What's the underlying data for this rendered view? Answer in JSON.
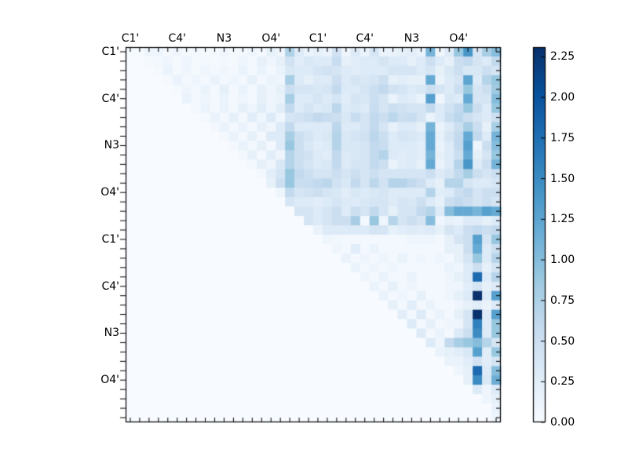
{
  "figure": {
    "background": "#ffffff"
  },
  "chart_data": {
    "type": "heatmap",
    "title": "",
    "xlabel": "",
    "ylabel": "",
    "n_rows": 40,
    "n_cols": 40,
    "x_axis_side": "top",
    "y_axis_side": "left",
    "grid": false,
    "x_tick_labels": [
      "C1'",
      "C4'",
      "N3",
      "O4'",
      "C1'",
      "C4'",
      "N3",
      "O4'"
    ],
    "y_tick_labels": [
      "C1'",
      "C4'",
      "N3",
      "O4'",
      "C1'",
      "C4'",
      "N3",
      "O4'"
    ],
    "x_tick_label_positions": [
      0,
      5,
      10,
      15,
      20,
      25,
      30,
      35
    ],
    "y_tick_label_positions": [
      0,
      5,
      10,
      15,
      20,
      25,
      30,
      35
    ],
    "colormap": "Blues",
    "colormap_stops": [
      "#f7fbff",
      "#deebf7",
      "#c6dbef",
      "#9ecae1",
      "#6baed6",
      "#4292c6",
      "#2171b5",
      "#08519c",
      "#08306b"
    ],
    "vmin": 0.0,
    "vmax": 2.31,
    "colorbar": {
      "position": "right",
      "tick_labels": [
        "0.00",
        "0.25",
        "0.50",
        "0.75",
        "1.00",
        "1.25",
        "1.50",
        "1.75",
        "2.00",
        "2.25"
      ],
      "tick_values": [
        0.0,
        0.25,
        0.5,
        0.75,
        1.0,
        1.25,
        1.5,
        1.75,
        2.0,
        2.25
      ]
    },
    "matrix_encoding": "rows: sparse upper-triangular; row r value at column c = v[c-start] if c>=start else 0",
    "rows": [
      {
        "start": 0,
        "v": [
          0.02,
          0.02,
          0.1,
          0.1,
          0.03,
          0.1,
          0.03,
          0.05,
          0.03,
          0.05,
          0.1,
          0.03,
          0.05,
          0.1,
          0.05,
          0.2,
          0.1,
          0.75,
          0.3,
          0.15,
          0.2,
          0.15,
          0.45,
          0.1,
          0.3,
          0.15,
          0.4,
          0.15,
          0.15,
          0.2,
          0.25,
          0.15,
          1.1,
          0.1,
          0.3,
          0.9,
          1.4,
          0.4,
          0.8,
          1.0
        ]
      },
      {
        "start": 2,
        "v": [
          0.03,
          0.05,
          0.1,
          0.03,
          0.1,
          0.03,
          0.05,
          0.03,
          0.05,
          0.03,
          0.1,
          0.05,
          0.2,
          0.1,
          0.2,
          0.45,
          0.25,
          0.35,
          0.3,
          0.3,
          0.55,
          0.2,
          0.25,
          0.3,
          0.3,
          0.4,
          0.3,
          0.3,
          0.2,
          0.3,
          0.5,
          0.3,
          0.2,
          0.5,
          0.6,
          0.4,
          0.3,
          0.6
        ]
      },
      {
        "start": 3,
        "v": [
          0.03,
          0.15,
          0.03,
          0.1,
          0.03,
          0.1,
          0.05,
          0.1,
          0.05,
          0.15,
          0.05,
          0.15,
          0.05,
          0.15,
          0.35,
          0.3,
          0.3,
          0.4,
          0.45,
          0.4,
          0.3,
          0.25,
          0.3,
          0.3,
          0.3,
          0.4,
          0.4,
          0.4,
          0.3,
          0.4,
          0.2,
          0.35,
          0.5,
          0.35,
          0.35,
          0.5,
          0.4
        ]
      },
      {
        "start": 4,
        "v": [
          0.03,
          0.15,
          0.05,
          0.1,
          0.05,
          0.15,
          0.05,
          0.1,
          0.05,
          0.2,
          0.05,
          0.15,
          0.1,
          0.8,
          0.3,
          0.2,
          0.3,
          0.3,
          0.5,
          0.3,
          0.4,
          0.35,
          0.4,
          0.5,
          0.2,
          0.25,
          0.2,
          0.2,
          1.2,
          0.15,
          0.3,
          0.4,
          1.25,
          0.3,
          0.7,
          0.9
        ]
      },
      {
        "start": 5,
        "v": [
          0.03,
          0.1,
          0.05,
          0.15,
          0.05,
          0.2,
          0.05,
          0.15,
          0.05,
          0.2,
          0.1,
          0.2,
          0.5,
          0.4,
          0.4,
          0.35,
          0.4,
          0.6,
          0.3,
          0.3,
          0.4,
          0.5,
          0.6,
          0.45,
          0.4,
          0.3,
          0.35,
          0.5,
          0.4,
          0.3,
          0.5,
          0.9,
          0.4,
          0.5,
          0.85
        ]
      },
      {
        "start": 6,
        "v": [
          0.15,
          0.05,
          0.1,
          0.05,
          0.15,
          0.05,
          0.1,
          0.05,
          0.2,
          0.1,
          0.15,
          0.8,
          0.3,
          0.3,
          0.4,
          0.3,
          0.4,
          0.25,
          0.4,
          0.35,
          0.5,
          0.4,
          0.15,
          0.3,
          0.25,
          0.15,
          1.3,
          0.1,
          0.35,
          0.3,
          1.2,
          0.4,
          0.4,
          1.0
        ]
      },
      {
        "start": 7,
        "v": [
          0.05,
          0.15,
          0.05,
          0.15,
          0.05,
          0.2,
          0.1,
          0.25,
          0.1,
          0.25,
          0.6,
          0.3,
          0.4,
          0.3,
          0.35,
          0.65,
          0.3,
          0.35,
          0.3,
          0.55,
          0.4,
          0.5,
          0.45,
          0.4,
          0.4,
          0.6,
          0.3,
          0.45,
          0.6,
          0.9,
          0.5,
          0.3,
          0.9
        ]
      },
      {
        "start": 8,
        "v": [
          0.05,
          0.15,
          0.05,
          0.2,
          0.05,
          0.25,
          0.1,
          0.3,
          0.1,
          0.4,
          0.45,
          0.5,
          0.6,
          0.55,
          0.5,
          0.35,
          0.55,
          0.4,
          0.6,
          0.5,
          0.65,
          0.5,
          0.55,
          0.4,
          0.15,
          0.3,
          0.55,
          0.65,
          0.5,
          0.4,
          0.3,
          0.5
        ]
      },
      {
        "start": 9,
        "v": [
          0.05,
          0.15,
          0.05,
          0.15,
          0.05,
          0.2,
          0.1,
          0.3,
          0.6,
          0.3,
          0.3,
          0.3,
          0.3,
          0.65,
          0.3,
          0.3,
          0.4,
          0.6,
          0.4,
          0.2,
          0.3,
          0.3,
          0.2,
          1.1,
          0.15,
          0.3,
          0.5,
          0.8,
          0.5,
          0.2,
          0.8
        ]
      },
      {
        "start": 10,
        "v": [
          0.05,
          0.15,
          0.05,
          0.2,
          0.05,
          0.3,
          0.3,
          0.8,
          0.5,
          0.4,
          0.3,
          0.35,
          0.7,
          0.35,
          0.4,
          0.45,
          0.65,
          0.5,
          0.3,
          0.4,
          0.35,
          0.3,
          1.2,
          0.2,
          0.4,
          0.6,
          1.2,
          0.6,
          0.3,
          1.1
        ]
      },
      {
        "start": 11,
        "v": [
          0.05,
          0.15,
          0.05,
          0.2,
          0.05,
          0.3,
          0.9,
          0.5,
          0.35,
          0.25,
          0.3,
          0.7,
          0.35,
          0.35,
          0.4,
          0.6,
          0.55,
          0.3,
          0.3,
          0.3,
          0.25,
          1.2,
          0.15,
          0.3,
          0.6,
          1.3,
          0.1,
          0.5,
          1.0
        ]
      },
      {
        "start": 12,
        "v": [
          0.05,
          0.2,
          0.05,
          0.25,
          0.1,
          0.7,
          0.5,
          0.45,
          0.3,
          0.25,
          0.6,
          0.3,
          0.35,
          0.4,
          0.6,
          0.7,
          0.3,
          0.25,
          0.3,
          0.25,
          1.1,
          0.2,
          0.3,
          0.5,
          1.2,
          0.2,
          0.4,
          0.9
        ]
      },
      {
        "start": 13,
        "v": [
          0.05,
          0.2,
          0.1,
          0.35,
          0.7,
          0.5,
          0.4,
          0.3,
          0.35,
          0.6,
          0.3,
          0.4,
          0.4,
          0.6,
          0.5,
          0.15,
          0.25,
          0.3,
          0.2,
          1.2,
          0.15,
          0.3,
          0.7,
          1.4,
          0.3,
          0.5,
          1.1
        ]
      },
      {
        "start": 14,
        "v": [
          0.05,
          0.25,
          0.4,
          0.9,
          0.6,
          0.5,
          0.4,
          0.4,
          0.5,
          0.4,
          0.5,
          0.4,
          0.5,
          0.4,
          0.4,
          0.4,
          0.4,
          0.4,
          0.5,
          0.3,
          0.4,
          0.6,
          0.8,
          0.5,
          0.4,
          0.5
        ]
      },
      {
        "start": 15,
        "v": [
          0.2,
          0.5,
          0.9,
          0.55,
          0.55,
          0.6,
          0.65,
          0.45,
          0.35,
          0.6,
          0.4,
          0.65,
          0.45,
          0.7,
          0.7,
          0.6,
          0.5,
          0.3,
          0.2,
          0.7,
          0.7,
          0.4,
          0.3,
          0.3,
          0.4
        ]
      },
      {
        "start": 16,
        "v": [
          0.1,
          0.6,
          0.4,
          0.45,
          0.5,
          0.4,
          0.35,
          0.25,
          0.35,
          0.3,
          0.35,
          0.4,
          0.3,
          0.3,
          0.3,
          0.3,
          0.7,
          0.25,
          0.3,
          0.5,
          0.6,
          0.4,
          0.5,
          0.5
        ]
      },
      {
        "start": 17,
        "v": [
          0.4,
          0.3,
          0.3,
          0.25,
          0.3,
          0.4,
          0.3,
          0.3,
          0.35,
          0.4,
          0.4,
          0.3,
          0.4,
          0.35,
          0.5,
          0.3,
          0.2,
          0.5,
          0.6,
          0.5,
          0.4,
          0.5,
          0.4
        ]
      },
      {
        "start": 18,
        "v": [
          0.4,
          0.4,
          0.3,
          0.4,
          0.5,
          0.3,
          0.5,
          0.4,
          0.6,
          0.4,
          0.2,
          0.4,
          0.4,
          0.6,
          0.7,
          0.3,
          1.0,
          1.2,
          1.2,
          1.1,
          1.3,
          1.2
        ]
      },
      {
        "start": 19,
        "v": [
          0.4,
          0.3,
          0.4,
          0.5,
          0.5,
          0.8,
          0.05,
          0.9,
          0.1,
          0.7,
          0.4,
          0.5,
          0.4,
          1.0,
          0.1,
          0.2,
          0.15,
          0.3,
          0.3,
          0.2,
          0.3
        ]
      },
      {
        "start": 20,
        "v": [
          0.15,
          0.3,
          0.3,
          0.3,
          0.3,
          0.3,
          0.4,
          0.4,
          0.2,
          0.25,
          0.3,
          0.25,
          0.3,
          0.2,
          0.4,
          0.3,
          0.5,
          0.6,
          0.5,
          0.6
        ]
      },
      {
        "start": 21,
        "v": [
          0.1,
          0.08,
          0.05,
          0.05,
          0.05,
          0.05,
          0.05,
          0.05,
          0.05,
          0.1,
          0.1,
          0.1,
          0.05,
          0.2,
          0.4,
          0.5,
          1.3,
          0.4,
          0.9
        ]
      },
      {
        "start": 22,
        "v": [
          0.1,
          0.05,
          0.25,
          0.05,
          0.15,
          0.05,
          0.05,
          0.05,
          0.05,
          0.05,
          0.05,
          0.05,
          0.2,
          0.2,
          0.5,
          1.2,
          0.3,
          0.5
        ]
      },
      {
        "start": 23,
        "v": [
          0.15,
          0.05,
          0.1,
          0.05,
          0.1,
          0.05,
          0.15,
          0.05,
          0.1,
          0.05,
          0.1,
          0.05,
          0.2,
          0.4,
          0.9,
          0.3,
          0.7
        ]
      },
      {
        "start": 24,
        "v": [
          0.15,
          0.05,
          0.1,
          0.05,
          0.1,
          0.05,
          0.05,
          0.05,
          0.05,
          0.05,
          0.15,
          0.1,
          0.3,
          0.5,
          0.2,
          0.4
        ]
      },
      {
        "start": 25,
        "v": [
          0.1,
          0.05,
          0.15,
          0.05,
          0.05,
          0.15,
          0.05,
          0.05,
          0.05,
          0.1,
          0.2,
          0.3,
          1.8,
          0.3,
          0.7
        ]
      },
      {
        "start": 26,
        "v": [
          0.15,
          0.05,
          0.2,
          0.05,
          0.1,
          0.05,
          0.05,
          0.05,
          0.1,
          0.1,
          0.25,
          0.4,
          0.2,
          0.3
        ]
      },
      {
        "start": 27,
        "v": [
          0.15,
          0.05,
          0.1,
          0.05,
          0.2,
          0.05,
          0.05,
          0.1,
          0.2,
          0.3,
          2.3,
          0.3,
          1.3
        ]
      },
      {
        "start": 28,
        "v": [
          0.2,
          0.05,
          0.25,
          0.05,
          0.15,
          0.05,
          0.05,
          0.1,
          0.2,
          0.25,
          0.15,
          0.3
        ]
      },
      {
        "start": 29,
        "v": [
          0.25,
          0.05,
          0.3,
          0.05,
          0.15,
          0.05,
          0.2,
          0.4,
          2.3,
          0.3,
          1.3
        ]
      },
      {
        "start": 30,
        "v": [
          0.3,
          0.05,
          0.2,
          0.05,
          0.1,
          0.1,
          0.4,
          1.6,
          0.3,
          0.9
        ]
      },
      {
        "start": 31,
        "v": [
          0.3,
          0.05,
          0.15,
          0.05,
          0.3,
          0.5,
          1.5,
          0.3,
          0.9
        ]
      },
      {
        "start": 32,
        "v": [
          0.3,
          0.1,
          0.6,
          0.8,
          0.9,
          1.0,
          0.7,
          0.4
        ]
      },
      {
        "start": 33,
        "v": [
          0.15,
          0.2,
          0.25,
          0.35,
          1.3,
          0.25,
          0.9
        ]
      },
      {
        "start": 34,
        "v": [
          0.15,
          0.15,
          0.25,
          0.45,
          0.25,
          0.4
        ]
      },
      {
        "start": 35,
        "v": [
          0.1,
          0.2,
          1.8,
          0.3,
          1.0
        ]
      },
      {
        "start": 36,
        "v": [
          0.2,
          1.5,
          0.35,
          1.15
        ]
      },
      {
        "start": 37,
        "v": [
          0.3,
          0.1,
          0.3
        ]
      },
      {
        "start": 38,
        "v": [
          0.1,
          0.2
        ]
      },
      {
        "start": 39,
        "v": [
          0.15
        ]
      },
      {
        "start": 39,
        "v": [
          0.1
        ]
      }
    ]
  }
}
